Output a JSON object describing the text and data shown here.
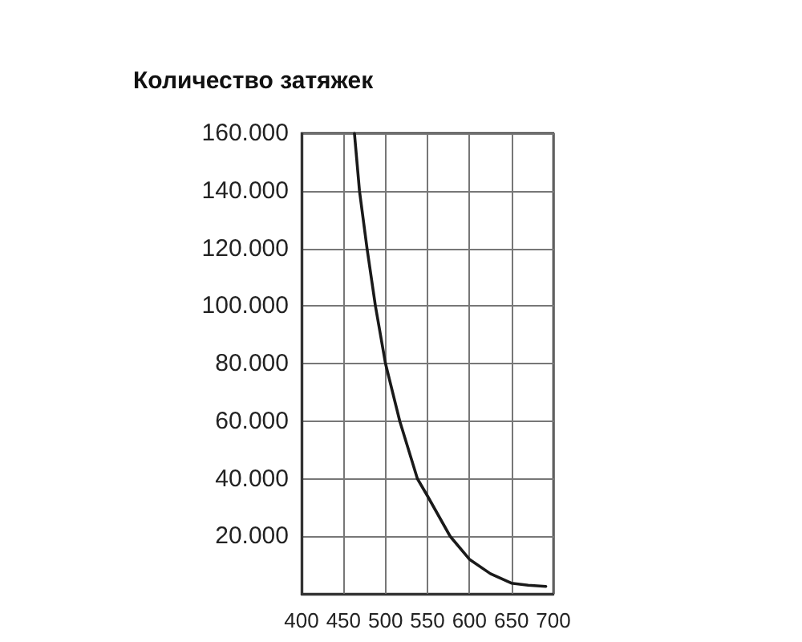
{
  "chart_data": {
    "type": "line",
    "title": "Количество затяжек",
    "x": [
      463,
      469,
      478,
      488,
      500,
      517,
      538,
      550,
      577,
      600,
      625,
      650,
      670,
      691
    ],
    "values": [
      160000,
      140000,
      120000,
      100000,
      80000,
      60000,
      40000,
      34000,
      20000,
      12000,
      7000,
      3700,
      3000,
      2600
    ],
    "color": "#1a1a1a",
    "marker": "none",
    "line_style": "solid",
    "grid": true,
    "xlim": [
      400,
      700
    ],
    "xticks": [
      400,
      450,
      500,
      550,
      600,
      650,
      700
    ],
    "ylim": [
      0,
      160000
    ],
    "yticks": [
      {
        "value": 0,
        "label": null
      },
      {
        "value": 20000,
        "label": "20.000"
      },
      {
        "value": 40000,
        "label": "40.000"
      },
      {
        "value": 60000,
        "label": "60.000"
      },
      {
        "value": 80000,
        "label": "80.000"
      },
      {
        "value": 100000,
        "label": "100.000"
      },
      {
        "value": 120000,
        "label": "120.000"
      },
      {
        "value": 140000,
        "label": "140.000"
      },
      {
        "value": 160000,
        "label": "160.000"
      }
    ]
  }
}
